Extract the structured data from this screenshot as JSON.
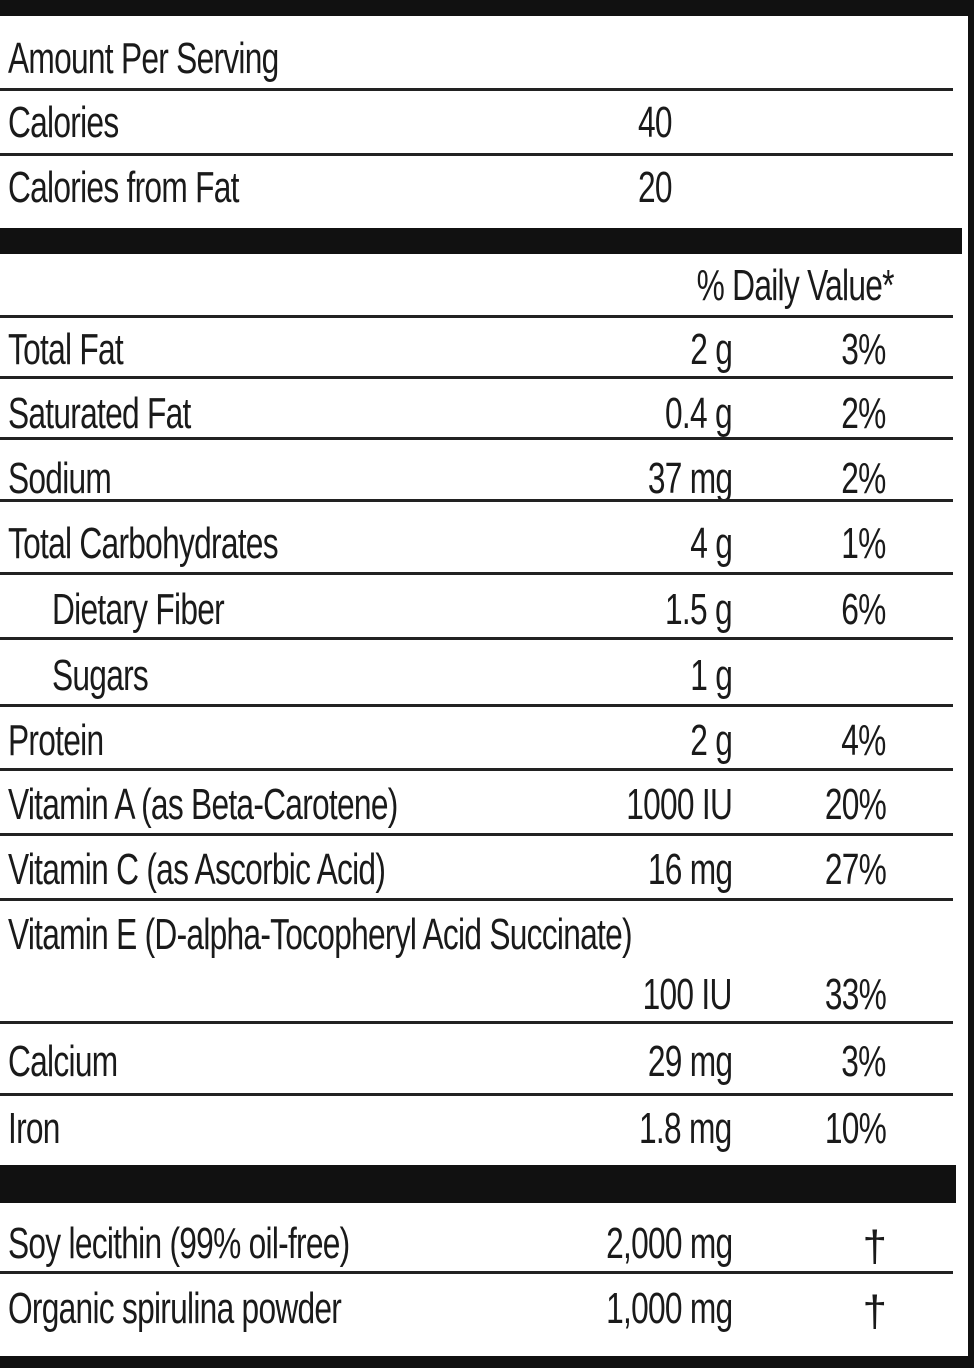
{
  "header": {
    "amount_per_serving": "Amount Per Serving"
  },
  "calories": {
    "label": "Calories",
    "value": "40"
  },
  "calories_from_fat": {
    "label": "Calories from Fat",
    "value": "20"
  },
  "daily_value_header": "% Daily Value*",
  "nutrients": [
    {
      "label": "Total Fat",
      "amount": "2 g",
      "dv": "3%"
    },
    {
      "label": "Saturated Fat",
      "amount": "0.4 g",
      "dv": "2%"
    },
    {
      "label": "Sodium",
      "amount": "37 mg",
      "dv": "2%"
    },
    {
      "label": "Total Carbohydrates",
      "amount": "4 g",
      "dv": "1%"
    },
    {
      "label": "Dietary Fiber",
      "amount": "1.5 g",
      "dv": "6%"
    },
    {
      "label": "Sugars",
      "amount": "1 g",
      "dv": ""
    },
    {
      "label": "Protein",
      "amount": "2 g",
      "dv": "4%"
    },
    {
      "label": "Vitamin A (as Beta-Carotene)",
      "amount": "1000 IU",
      "dv": "20%"
    },
    {
      "label": "Vitamin C (as Ascorbic Acid)",
      "amount": "16 mg",
      "dv": "27%"
    },
    {
      "label": "Vitamin E (D-alpha-Tocopheryl Acid Succinate)",
      "amount": "100 IU",
      "dv": "33%"
    },
    {
      "label": "Calcium",
      "amount": "29 mg",
      "dv": "3%"
    },
    {
      "label": "Iron",
      "amount": "1.8 mg",
      "dv": "10%"
    }
  ],
  "other": [
    {
      "label": "Soy lecithin (99% oil-free)",
      "amount": "2,000 mg",
      "dv": "†"
    },
    {
      "label": "Organic spirulina powder",
      "amount": "1,000 mg",
      "dv": "†"
    }
  ]
}
